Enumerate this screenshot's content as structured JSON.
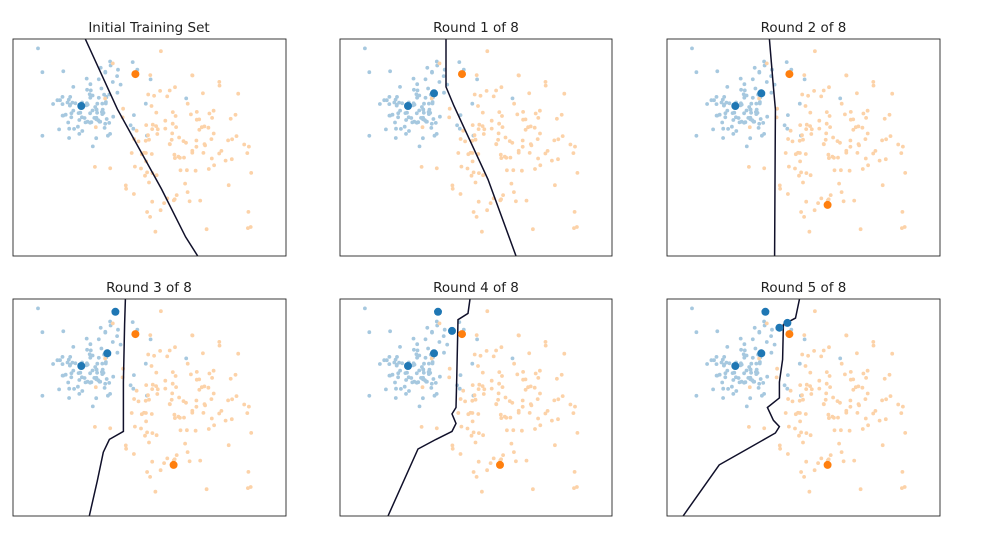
{
  "figure": {
    "panels": [
      {
        "title": "Initial Training Set"
      },
      {
        "title": "Round 1 of 8"
      },
      {
        "title": "Round 2 of 8"
      },
      {
        "title": "Round 3 of 8"
      },
      {
        "title": "Round 4 of 8"
      },
      {
        "title": "Round 5 of 8"
      }
    ]
  },
  "chart_data": [
    {
      "type": "scatter",
      "title": "Initial Training Set",
      "xlabel": "",
      "ylabel": "",
      "xlim": [
        -3.4,
        3.4
      ],
      "ylim": [
        -3.4,
        3.4
      ],
      "grid": false,
      "ticks": false,
      "colors": {
        "class_a": "#1f77b4",
        "class_b": "#ff7f0e",
        "class_a_pool": "#a6c8df",
        "class_b_pool": "#fcd2a8",
        "boundary": "#10102a"
      },
      "labeled": [
        {
          "class": "a",
          "points": [
            [
              -1.7,
              1.3
            ]
          ]
        },
        {
          "class": "b",
          "points": [
            [
              -0.35,
              2.3
            ]
          ]
        }
      ],
      "boundary": [
        [
          -1.6,
          3.4
        ],
        [
          -0.8,
          1.2
        ],
        [
          0.3,
          -1.3
        ],
        [
          0.9,
          -2.8
        ],
        [
          1.2,
          -3.4
        ]
      ]
    },
    {
      "type": "scatter",
      "title": "Round 1 of 8",
      "xlabel": "",
      "ylabel": "",
      "xlim": [
        -3.4,
        3.4
      ],
      "ylim": [
        -3.4,
        3.4
      ],
      "grid": false,
      "ticks": false,
      "colors": {
        "class_a": "#1f77b4",
        "class_b": "#ff7f0e",
        "class_a_pool": "#a6c8df",
        "class_b_pool": "#fcd2a8",
        "boundary": "#10102a"
      },
      "labeled": [
        {
          "class": "a",
          "points": [
            [
              -1.7,
              1.3
            ],
            [
              -1.05,
              1.7
            ]
          ]
        },
        {
          "class": "b",
          "points": [
            [
              -0.35,
              2.3
            ]
          ]
        }
      ],
      "boundary": [
        [
          -0.75,
          3.4
        ],
        [
          -0.75,
          1.9
        ],
        [
          -0.55,
          1.3
        ],
        [
          0.3,
          -1.0
        ],
        [
          1.0,
          -3.4
        ]
      ]
    },
    {
      "type": "scatter",
      "title": "Round 2 of 8",
      "xlabel": "",
      "ylabel": "",
      "xlim": [
        -3.4,
        3.4
      ],
      "ylim": [
        -3.4,
        3.4
      ],
      "grid": false,
      "ticks": false,
      "colors": {
        "class_a": "#1f77b4",
        "class_b": "#ff7f0e",
        "class_a_pool": "#a6c8df",
        "class_b_pool": "#fcd2a8",
        "boundary": "#10102a"
      },
      "labeled": [
        {
          "class": "a",
          "points": [
            [
              -1.7,
              1.3
            ],
            [
              -1.05,
              1.7
            ]
          ]
        },
        {
          "class": "b",
          "points": [
            [
              -0.35,
              2.3
            ],
            [
              0.6,
              -1.8
            ]
          ]
        }
      ],
      "boundary": [
        [
          -0.85,
          3.4
        ],
        [
          -0.75,
          1.9
        ],
        [
          -0.7,
          1.2
        ],
        [
          -0.72,
          -3.4
        ]
      ]
    },
    {
      "type": "scatter",
      "title": "Round 3 of 8",
      "xlabel": "",
      "ylabel": "",
      "xlim": [
        -3.4,
        3.4
      ],
      "ylim": [
        -3.4,
        3.4
      ],
      "grid": false,
      "ticks": false,
      "colors": {
        "class_a": "#1f77b4",
        "class_b": "#ff7f0e",
        "class_a_pool": "#a6c8df",
        "class_b_pool": "#fcd2a8",
        "boundary": "#10102a"
      },
      "labeled": [
        {
          "class": "a",
          "points": [
            [
              -1.7,
              1.3
            ],
            [
              -1.05,
              1.7
            ],
            [
              -0.85,
              3.0
            ]
          ]
        },
        {
          "class": "b",
          "points": [
            [
              -0.35,
              2.3
            ],
            [
              0.6,
              -1.8
            ]
          ]
        }
      ],
      "boundary": [
        [
          -0.6,
          3.4
        ],
        [
          -0.62,
          2.6
        ],
        [
          -0.65,
          0.8
        ],
        [
          -0.65,
          -0.75
        ],
        [
          -1.0,
          -1.0
        ],
        [
          -1.15,
          -1.4
        ],
        [
          -1.3,
          -2.3
        ],
        [
          -1.5,
          -3.4
        ]
      ]
    },
    {
      "type": "scatter",
      "title": "Round 4 of 8",
      "xlabel": "",
      "ylabel": "",
      "xlim": [
        -3.4,
        3.4
      ],
      "ylim": [
        -3.4,
        3.4
      ],
      "grid": false,
      "ticks": false,
      "colors": {
        "class_a": "#1f77b4",
        "class_b": "#ff7f0e",
        "class_a_pool": "#a6c8df",
        "class_b_pool": "#fcd2a8",
        "boundary": "#10102a"
      },
      "labeled": [
        {
          "class": "a",
          "points": [
            [
              -1.7,
              1.3
            ],
            [
              -1.05,
              1.7
            ],
            [
              -0.95,
              3.0
            ],
            [
              -0.6,
              2.4
            ]
          ]
        },
        {
          "class": "b",
          "points": [
            [
              -0.35,
              2.3
            ],
            [
              0.6,
              -1.8
            ]
          ]
        }
      ],
      "boundary": [
        [
          -0.15,
          3.4
        ],
        [
          -0.2,
          2.95
        ],
        [
          -0.45,
          2.75
        ],
        [
          -0.48,
          1.0
        ],
        [
          -0.5,
          0.0
        ],
        [
          -0.6,
          -0.2
        ],
        [
          -0.5,
          -0.5
        ],
        [
          -0.6,
          -0.75
        ],
        [
          -1.0,
          -1.0
        ],
        [
          -1.45,
          -1.3
        ],
        [
          -2.2,
          -3.4
        ]
      ]
    },
    {
      "type": "scatter",
      "title": "Round 5 of 8",
      "xlabel": "",
      "ylabel": "",
      "xlim": [
        -3.4,
        3.4
      ],
      "ylim": [
        -3.4,
        3.4
      ],
      "grid": false,
      "ticks": false,
      "colors": {
        "class_a": "#1f77b4",
        "class_b": "#ff7f0e",
        "class_a_pool": "#a6c8df",
        "class_b_pool": "#fcd2a8",
        "boundary": "#10102a"
      },
      "labeled": [
        {
          "class": "a",
          "points": [
            [
              -1.7,
              1.3
            ],
            [
              -1.05,
              1.7
            ],
            [
              -0.95,
              3.0
            ],
            [
              -0.6,
              2.5
            ],
            [
              -0.4,
              2.65
            ]
          ]
        },
        {
          "class": "b",
          "points": [
            [
              -0.35,
              2.3
            ],
            [
              0.6,
              -1.8
            ]
          ]
        }
      ],
      "boundary": [
        [
          -0.1,
          3.4
        ],
        [
          -0.2,
          2.8
        ],
        [
          -0.5,
          2.6
        ],
        [
          -0.52,
          1.5
        ],
        [
          -0.6,
          0.8
        ],
        [
          -0.6,
          0.3
        ],
        [
          -0.9,
          0.0
        ],
        [
          -0.75,
          -0.4
        ],
        [
          -0.6,
          -0.6
        ],
        [
          -0.7,
          -0.8
        ],
        [
          -1.4,
          -1.3
        ],
        [
          -2.1,
          -1.8
        ],
        [
          -3.0,
          -3.4
        ]
      ]
    }
  ]
}
